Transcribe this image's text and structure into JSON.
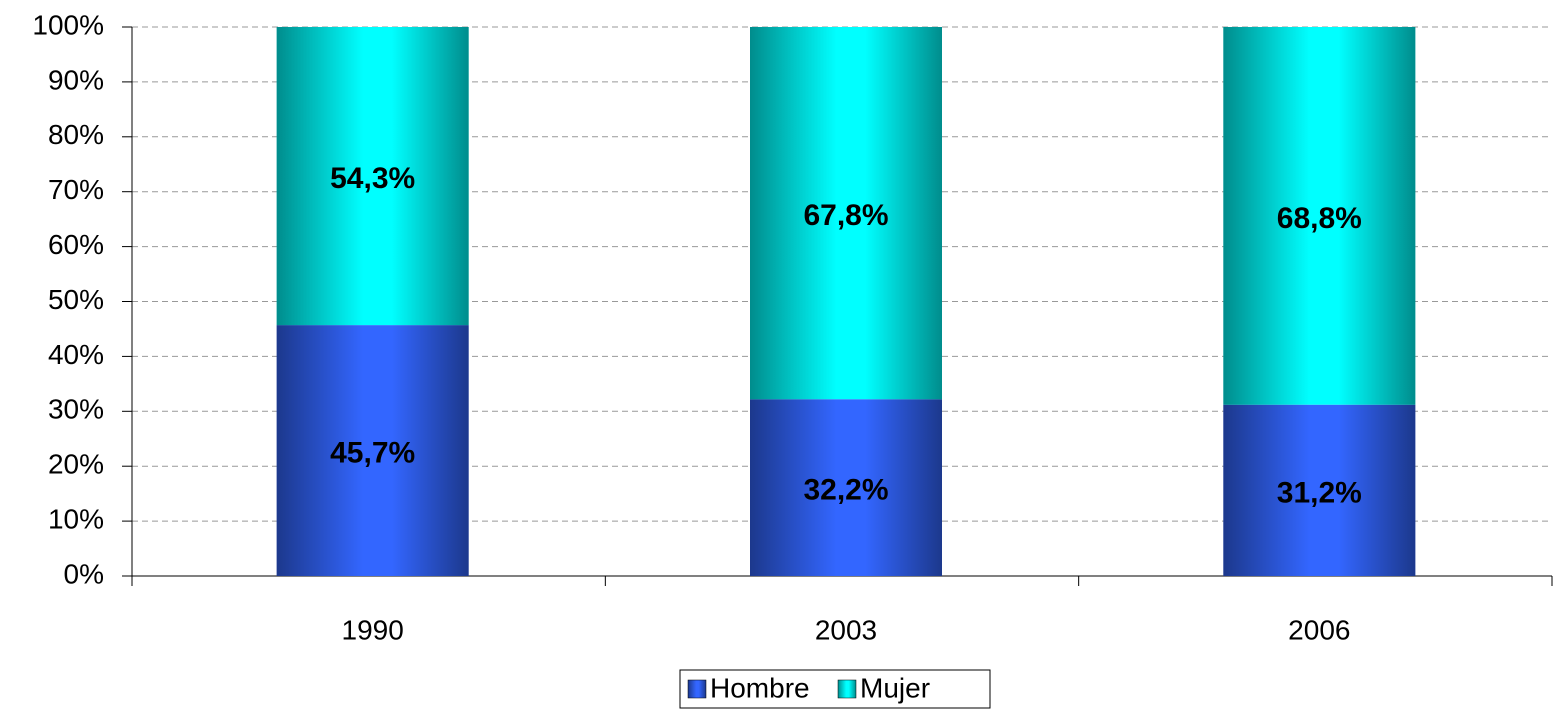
{
  "chart_data": {
    "type": "stacked_bar",
    "categories": [
      "1990",
      "2003",
      "2006"
    ],
    "series": [
      {
        "name": "Hombre",
        "color": "#3366ff",
        "values": [
          45.7,
          32.2,
          31.2
        ],
        "value_labels": [
          "45,7%",
          "32,2%",
          "31,2%"
        ]
      },
      {
        "name": "Mujer",
        "color": "#00ffff",
        "values": [
          54.3,
          67.8,
          68.8
        ],
        "value_labels": [
          "54,3%",
          "67,8%",
          "68,8%"
        ]
      }
    ],
    "ylim": [
      0,
      100
    ],
    "yticks": [
      {
        "value": 0,
        "label": "0%"
      },
      {
        "value": 10,
        "label": "10%"
      },
      {
        "value": 20,
        "label": "20%"
      },
      {
        "value": 30,
        "label": "30%"
      },
      {
        "value": 40,
        "label": "40%"
      },
      {
        "value": 50,
        "label": "50%"
      },
      {
        "value": 60,
        "label": "60%"
      },
      {
        "value": 70,
        "label": "70%"
      },
      {
        "value": 80,
        "label": "80%"
      },
      {
        "value": 90,
        "label": "90%"
      },
      {
        "value": 100,
        "label": "100%"
      }
    ],
    "grid": true,
    "legend": "bottom"
  }
}
